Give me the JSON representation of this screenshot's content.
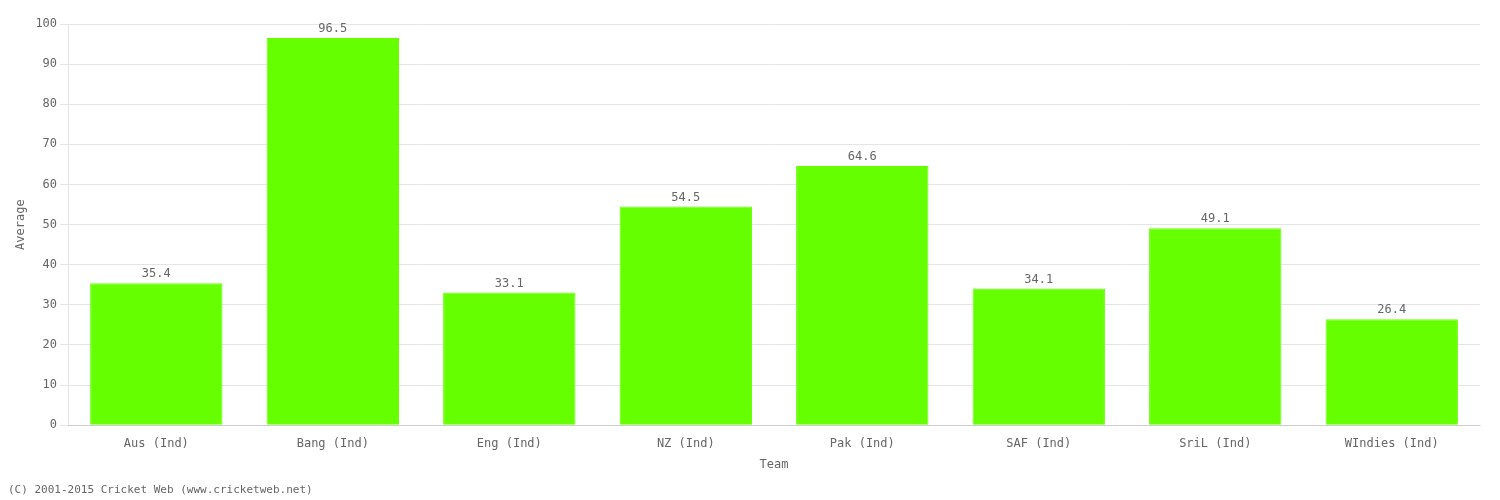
{
  "chart_data": {
    "type": "bar",
    "categories": [
      "Aus (Ind)",
      "Bang (Ind)",
      "Eng (Ind)",
      "NZ (Ind)",
      "Pak (Ind)",
      "SAF (Ind)",
      "SriL (Ind)",
      "WIndies (Ind)"
    ],
    "values": [
      35.4,
      96.5,
      33.1,
      54.5,
      64.6,
      34.1,
      49.1,
      26.4
    ],
    "color": "#66ff00",
    "xlabel": "Team",
    "ylabel": "Average",
    "ylim": [
      0,
      100
    ],
    "yticks": [
      0,
      10,
      20,
      30,
      40,
      50,
      60,
      70,
      80,
      90,
      100
    ],
    "grid": true,
    "data_labels": true,
    "annotations": [
      "(C) 2001-2015 Cricket Web (www.cricketweb.net)"
    ]
  }
}
